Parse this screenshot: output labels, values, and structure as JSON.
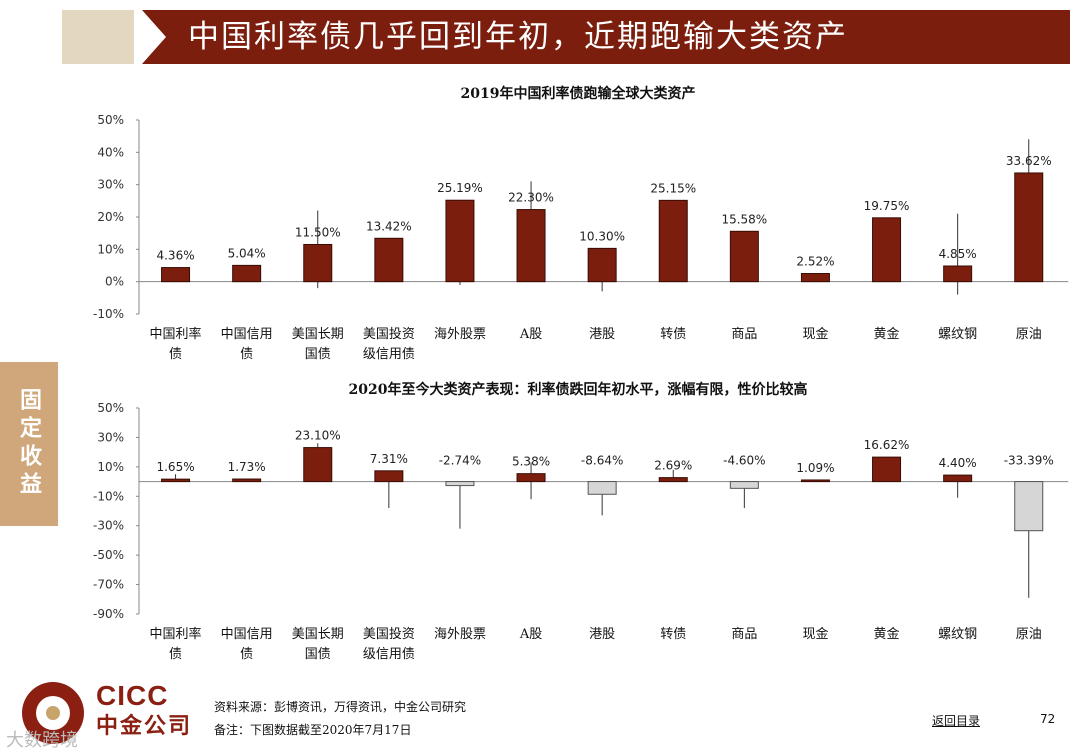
{
  "header": {
    "title": "中国利率债几乎回到年初，近期跑输大类资产"
  },
  "side_tab": {
    "label": "固定收益"
  },
  "chart_data": [
    {
      "type": "bar",
      "title": "2019年中国利率债跑输全球大类资产",
      "categories": [
        [
          "中国利率",
          "债"
        ],
        [
          "中国信用",
          "债"
        ],
        [
          "美国长期",
          "国债"
        ],
        [
          "美国投资",
          "级信用债"
        ],
        [
          "海外股票"
        ],
        [
          "A股"
        ],
        [
          "港股"
        ],
        [
          "转债"
        ],
        [
          "商品"
        ],
        [
          "现金"
        ],
        [
          "黄金"
        ],
        [
          "螺纹钢"
        ],
        [
          "原油"
        ]
      ],
      "values": [
        4.36,
        5.04,
        11.5,
        13.42,
        25.19,
        22.3,
        10.3,
        25.15,
        15.58,
        2.52,
        19.75,
        4.85,
        33.62
      ],
      "labels": [
        "4.36%",
        "5.04%",
        "11.50%",
        "13.42%",
        "25.19%",
        "22.30%",
        "10.30%",
        "25.15%",
        "15.58%",
        "2.52%",
        "19.75%",
        "4.85%",
        "33.62%"
      ],
      "range_low": [
        4.36,
        5.04,
        -2,
        13.42,
        -1,
        22.3,
        -3,
        25.15,
        15.58,
        2.52,
        19.75,
        -4,
        33.62
      ],
      "range_high": [
        4.36,
        5.04,
        22,
        13.42,
        25.19,
        31,
        10.3,
        25.15,
        15.58,
        2.52,
        19.75,
        21,
        44
      ],
      "yticks": [
        "50%",
        "40%",
        "30%",
        "20%",
        "10%",
        "0%",
        "-10%"
      ],
      "ylim": [
        -10,
        50
      ]
    },
    {
      "type": "bar",
      "title": "2020年至今大类资产表现：利率债跌回年初水平，涨幅有限，性价比较高",
      "categories": [
        [
          "中国利率",
          "债"
        ],
        [
          "中国信用",
          "债"
        ],
        [
          "美国长期",
          "国债"
        ],
        [
          "美国投资",
          "级信用债"
        ],
        [
          "海外股票"
        ],
        [
          "A股"
        ],
        [
          "港股"
        ],
        [
          "转债"
        ],
        [
          "商品"
        ],
        [
          "现金"
        ],
        [
          "黄金"
        ],
        [
          "螺纹钢"
        ],
        [
          "原油"
        ]
      ],
      "values": [
        1.65,
        1.73,
        23.1,
        7.31,
        -2.74,
        5.38,
        -8.64,
        2.69,
        -4.6,
        1.09,
        16.62,
        4.4,
        -33.39
      ],
      "labels": [
        "1.65%",
        "1.73%",
        "23.10%",
        "7.31%",
        "-2.74%",
        "5.38%",
        "-8.64%",
        "2.69%",
        "-4.60%",
        "1.09%",
        "16.62%",
        "4.40%",
        "-33.39%"
      ],
      "range_low": [
        1.65,
        1.73,
        23.1,
        -18,
        -32,
        -12,
        -23,
        0,
        -18,
        1.09,
        0,
        -11,
        -79
      ],
      "range_high": [
        5,
        1.73,
        26,
        7.31,
        0,
        13,
        0,
        8,
        0,
        1.09,
        16.62,
        4.4,
        0
      ],
      "yticks": [
        "50%",
        "30%",
        "10%",
        "-10%",
        "-30%",
        "-50%",
        "-70%",
        "-90%"
      ],
      "ylim": [
        -90,
        50
      ]
    }
  ],
  "footer": {
    "source": "资料来源：彭博资讯，万得资讯，中金公司研究",
    "note": "备注：下图数据截至2020年7月17日",
    "back_link": "返回目录",
    "page_number": "72",
    "logo_en": "CICC",
    "logo_cn": "中金公司",
    "watermark": "大数跨境"
  },
  "colors": {
    "brand": "#7b1e0e",
    "negative": "#d6d6d6",
    "banner_accent": "#e3d7bf",
    "side_tab": "#cfa77a"
  }
}
